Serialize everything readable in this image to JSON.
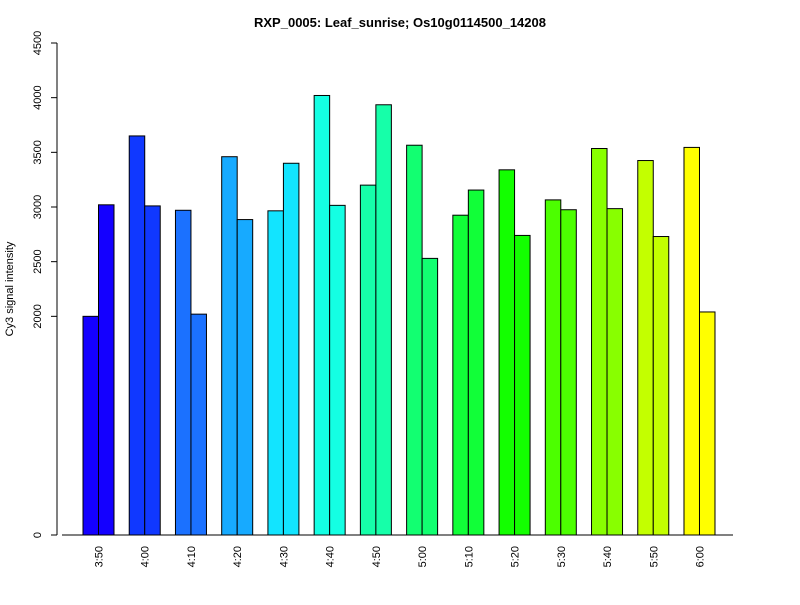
{
  "chart_data": {
    "type": "bar",
    "title": "RXP_0005: Leaf_sunrise; Os10g0114500_14208",
    "xlabel": "",
    "ylabel": "Cy3 signal intensity",
    "ylim": [
      0,
      4500
    ],
    "y_ticks": [
      "0",
      "2000",
      "2500",
      "3000",
      "3500",
      "4000",
      "4500"
    ],
    "y_tick_values": [
      0,
      2000,
      2500,
      3000,
      3500,
      4000,
      4500
    ],
    "categories": [
      "3:50",
      "4:00",
      "4:10",
      "4:20",
      "4:30",
      "4:40",
      "4:50",
      "5:00",
      "5:10",
      "5:20",
      "5:30",
      "5:40",
      "5:50",
      "6:00"
    ],
    "series": [
      {
        "values": [
          2000,
          3650,
          2970,
          3460,
          2965,
          4020,
          3200,
          3565,
          2925,
          3340,
          3065,
          3535,
          3425,
          3545
        ]
      },
      {
        "values": [
          3020,
          3010,
          2020,
          2885,
          3400,
          3015,
          3935,
          2530,
          3155,
          2740,
          2975,
          2985,
          2730,
          2040
        ]
      }
    ],
    "colors": [
      "#1400ff",
      "#1038ff",
      "#1b71ff",
      "#17aaff",
      "#12e4ff",
      "#14ffe3",
      "#16ffa9",
      "#12ff71",
      "#11ff38",
      "#13ff00",
      "#4cff00",
      "#88ff00",
      "#c3ff00",
      "#ffff00"
    ],
    "grid": false,
    "legend": "none"
  }
}
